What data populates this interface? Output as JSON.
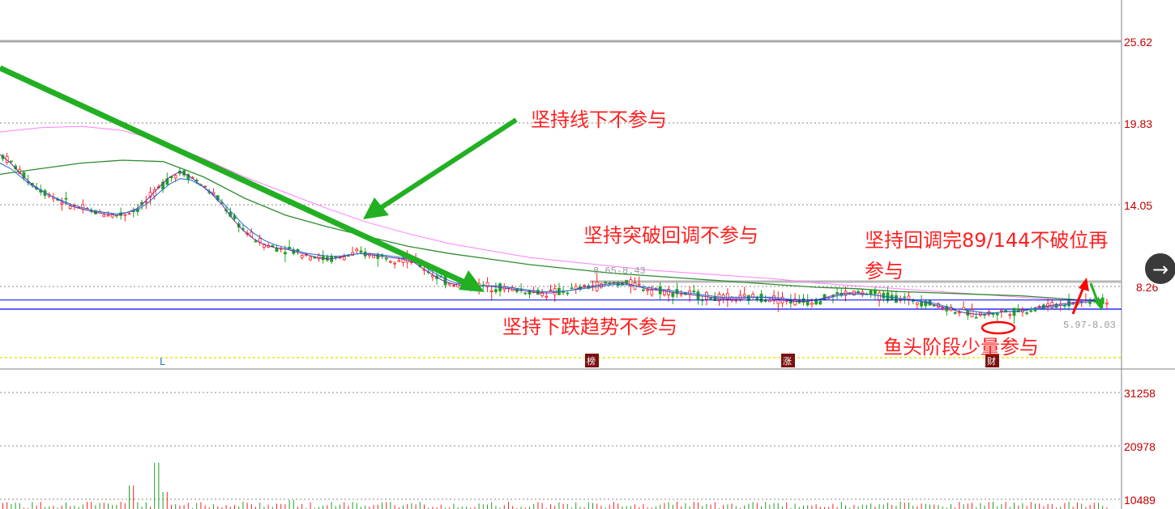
{
  "chart_data": [
    {
      "type": "candlestick",
      "y_ticks": [
        "25.62",
        "19.83",
        "14.05",
        "8.26"
      ],
      "range_labels": [
        "8.65-8.43",
        "5.97-8.03"
      ],
      "markers": [
        "L",
        "榜",
        "涨",
        "财"
      ],
      "annotations": [
        "坚持线下不参与",
        "坚持突破回调不参与",
        "坚持回调完89/144不破位再",
        "参与",
        "坚持下跌趋势不参与",
        "鱼头阶段少量参与"
      ],
      "series": [
        {
          "color": "#7030a0",
          "values": [
            17.6,
            17.0,
            16.2,
            15.5,
            15.0,
            14.6,
            14.2,
            13.9,
            13.7,
            13.5,
            13.4,
            13.3,
            13.5,
            13.8,
            14.5,
            15.3,
            16.0,
            16.4,
            16.0,
            15.4,
            14.8,
            14.0,
            13.0,
            12.2,
            11.6,
            11.2,
            11.0,
            10.9,
            10.7,
            10.5,
            10.3,
            10.2,
            10.3,
            10.5,
            10.6,
            10.5,
            10.4,
            10.3,
            10.2,
            10.0,
            9.5,
            9.0,
            8.6,
            8.4,
            8.3,
            8.3,
            8.3,
            8.2,
            8.1,
            8.0,
            7.9,
            7.8,
            7.8,
            7.9,
            8.0,
            8.2,
            8.3,
            8.4,
            8.5,
            8.5,
            8.3,
            8.1,
            8.0,
            7.9,
            7.8,
            7.7,
            7.6,
            7.5,
            7.4,
            7.4,
            7.4,
            7.5,
            7.5,
            7.4,
            7.3,
            7.2,
            7.2,
            7.3,
            7.5,
            7.7,
            7.8,
            7.8,
            7.7,
            7.6,
            7.5,
            7.4,
            7.3,
            7.2,
            7.0,
            6.8,
            6.6,
            6.4,
            6.3,
            6.3,
            6.4,
            6.5,
            6.5,
            6.6,
            6.8,
            6.9,
            7.0,
            7.1,
            7.2,
            7.3,
            7.2
          ]
        },
        {
          "color": "#1e6fd0",
          "values": [
            17.0,
            16.6,
            16.0,
            15.4,
            15.0,
            14.6,
            14.3,
            14.0,
            13.8,
            13.6,
            13.5,
            13.4,
            13.5,
            13.7,
            14.2,
            14.9,
            15.5,
            15.9,
            15.8,
            15.4,
            14.9,
            14.2,
            13.4,
            12.6,
            12.0,
            11.5,
            11.2,
            11.0,
            10.8,
            10.6,
            10.5,
            10.4,
            10.4,
            10.5,
            10.6,
            10.6,
            10.5,
            10.4,
            10.3,
            10.1,
            9.7,
            9.2,
            8.8,
            8.5,
            8.4,
            8.3,
            8.3,
            8.3,
            8.2,
            8.1,
            8.0,
            7.9,
            7.9,
            7.9,
            8.0,
            8.1,
            8.2,
            8.3,
            8.4,
            8.4,
            8.3,
            8.2,
            8.1,
            8.0,
            7.9,
            7.8,
            7.7,
            7.6,
            7.5,
            7.5,
            7.5,
            7.5,
            7.5,
            7.5,
            7.4,
            7.3,
            7.3,
            7.3,
            7.4,
            7.6,
            7.7,
            7.7,
            7.7,
            7.6,
            7.5,
            7.4,
            7.3,
            7.2,
            7.1,
            6.9,
            6.7,
            6.6,
            6.5,
            6.4,
            6.4,
            6.5,
            6.5,
            6.6,
            6.7,
            6.8,
            6.9,
            7.0,
            7.1,
            7.2,
            7.2
          ]
        },
        {
          "color": "#ff80ff",
          "values": [
            19.2,
            19.5,
            19.6,
            19.3,
            18.5,
            17.3,
            16.0,
            14.9,
            13.8,
            12.8,
            12.0,
            11.3,
            10.8,
            10.3,
            10.0,
            9.7,
            9.4,
            9.2,
            9.0,
            8.8,
            8.5,
            8.3,
            8.1,
            7.9,
            7.7,
            7.5,
            7.3,
            7.2
          ]
        },
        {
          "color": "#2e8b2e",
          "values": [
            16.2,
            16.6,
            17.0,
            17.2,
            17.1,
            16.0,
            14.5,
            13.3,
            12.5,
            11.8,
            11.1,
            10.6,
            10.2,
            9.8,
            9.5,
            9.2,
            9.0,
            8.8,
            8.6,
            8.4,
            8.2,
            8.1,
            7.9,
            7.8,
            7.7,
            7.6,
            7.4,
            7.2
          ]
        },
        {
          "name": "",
          "color": "#0000ff",
          "values": [
            7.3,
            7.3
          ]
        }
      ]
    },
    {
      "type": "bar",
      "y_ticks": [
        "31258",
        "20978",
        "10489"
      ]
    }
  ],
  "nav": {
    "next_icon": "arrow-right-icon",
    "next_label": "→"
  }
}
